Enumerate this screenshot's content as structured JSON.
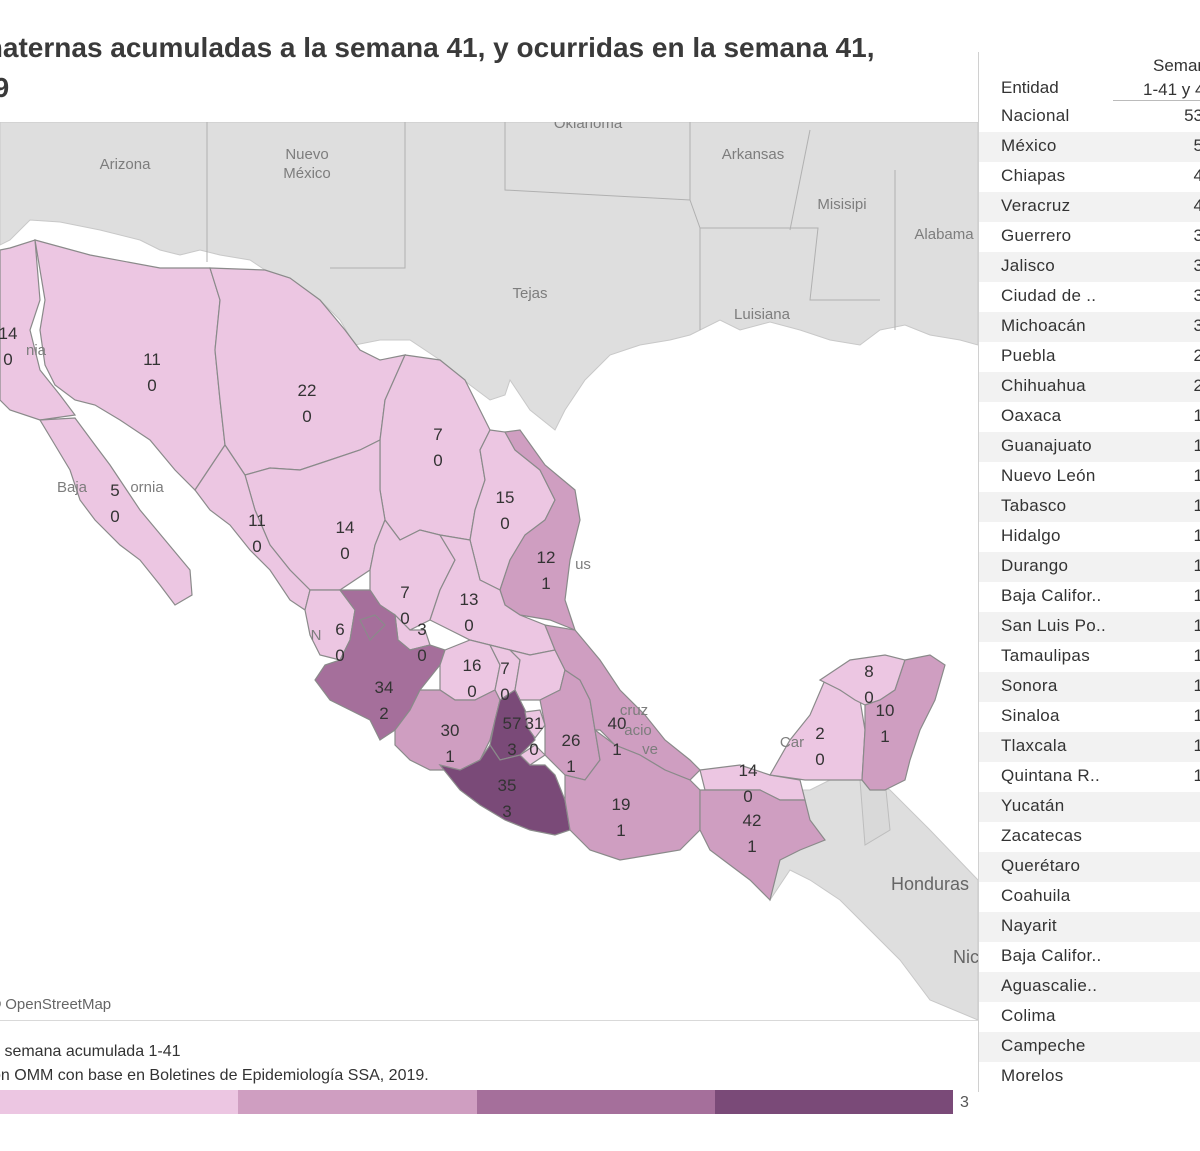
{
  "title": {
    "line1": "maternas acumuladas a la semana 41, y ocurridas en la semana 41,",
    "line2": "19"
  },
  "colors": {
    "bin1": "#ecc6e2",
    "bin2": "#cf9ec1",
    "bin3": "#a56f9b",
    "bin4": "#7a4a78",
    "land_bg": "#dedede",
    "water": "#ffffff",
    "border": "#777777"
  },
  "map": {
    "attribution": "OpenStreetMap",
    "geo_labels": {
      "arizona": "Arizona",
      "nuevo_mexico_1": "Nuevo",
      "nuevo_mexico_2": "México",
      "oklahoma": "Oklahoma",
      "arkansas": "Arkansas",
      "misisipi": "Misisipi",
      "alabama": "Alabama",
      "tejas": "Tejas",
      "luisiana": "Luisiana",
      "baja_california_a": "Baja",
      "baja_california_b": "ornia",
      "nia": "nia",
      "honduras": "Honduras",
      "nic": "Nic",
      "veracruz_a": "cruz",
      "veracruz_b": "acio",
      "veracruz_c": "ve",
      "car": "Car",
      "us": "us",
      "n": "N"
    },
    "states": [
      {
        "id": "sonora",
        "total": "11",
        "week": "0",
        "bin": 1
      },
      {
        "id": "chihuahua",
        "total": "22",
        "week": "0",
        "bin": 1
      },
      {
        "id": "coahuila",
        "total": "7",
        "week": "0",
        "bin": 1
      },
      {
        "id": "nuevo-leon",
        "total": "15",
        "week": "0",
        "bin": 1
      },
      {
        "id": "tamaulipas",
        "total": "12",
        "week": "1",
        "bin": 2
      },
      {
        "id": "baja-california",
        "total": "14",
        "week": "0",
        "bin": 1
      },
      {
        "id": "baja-california-sur",
        "total": "5",
        "week": "0",
        "bin": 1
      },
      {
        "id": "sinaloa",
        "total": "11",
        "week": "0",
        "bin": 1
      },
      {
        "id": "durango",
        "total": "14",
        "week": "0",
        "bin": 1
      },
      {
        "id": "zacatecas",
        "total": "7",
        "week": "0",
        "bin": 1
      },
      {
        "id": "san-luis-potosi",
        "total": "13",
        "week": "0",
        "bin": 1
      },
      {
        "id": "nayarit",
        "total": "6",
        "week": "0",
        "bin": 1
      },
      {
        "id": "aguascalientes",
        "total": "3",
        "week": "0",
        "bin": 1
      },
      {
        "id": "jalisco",
        "total": "34",
        "week": "2",
        "bin": 3
      },
      {
        "id": "guanajuato",
        "total": "16",
        "week": "0",
        "bin": 1
      },
      {
        "id": "queretaro",
        "total": "7",
        "week": "0",
        "bin": 1
      },
      {
        "id": "michoacan",
        "total": "30",
        "week": "1",
        "bin": 2
      },
      {
        "id": "mexico",
        "total": "57",
        "week": "3",
        "bin": 4
      },
      {
        "id": "ciudad-de-mexico",
        "total": "31",
        "week": "0",
        "bin": 1
      },
      {
        "id": "guerrero",
        "total": "35",
        "week": "3",
        "bin": 4
      },
      {
        "id": "puebla",
        "total": "26",
        "week": "1",
        "bin": 2
      },
      {
        "id": "veracruz",
        "total": "40",
        "week": "1",
        "bin": 2
      },
      {
        "id": "oaxaca",
        "total": "19",
        "week": "1",
        "bin": 2
      },
      {
        "id": "tabasco",
        "total": "14",
        "week": "0",
        "bin": 1
      },
      {
        "id": "chiapas",
        "total": "42",
        "week": "1",
        "bin": 2
      },
      {
        "id": "campeche",
        "total": "2",
        "week": "0",
        "bin": 1
      },
      {
        "id": "yucatan",
        "total": "8",
        "week": "0",
        "bin": 1
      },
      {
        "id": "quintana-roo",
        "total": "10",
        "week": "1",
        "bin": 2
      }
    ]
  },
  "legend": {
    "note1": "s semana acumulada 1-41",
    "note2": "ón OMM con base en Boletines de Epidemiología SSA, 2019.",
    "max_label": "3"
  },
  "table": {
    "col_entity": "Entidad",
    "col_semana_1": "Seman",
    "col_semana_2": "1-41 y 4",
    "rows": [
      {
        "name": "Nacional",
        "value": "53"
      },
      {
        "name": "México",
        "value": "5"
      },
      {
        "name": "Chiapas",
        "value": "4"
      },
      {
        "name": "Veracruz",
        "value": "4"
      },
      {
        "name": "Guerrero",
        "value": "3"
      },
      {
        "name": "Jalisco",
        "value": "3"
      },
      {
        "name": "Ciudad de ..",
        "value": "3"
      },
      {
        "name": "Michoacán",
        "value": "3"
      },
      {
        "name": "Puebla",
        "value": "2"
      },
      {
        "name": "Chihuahua",
        "value": "2"
      },
      {
        "name": "Oaxaca",
        "value": "1"
      },
      {
        "name": "Guanajuato",
        "value": "1"
      },
      {
        "name": "Nuevo León",
        "value": "1"
      },
      {
        "name": "Tabasco",
        "value": "1"
      },
      {
        "name": "Hidalgo",
        "value": "1"
      },
      {
        "name": "Durango",
        "value": "1"
      },
      {
        "name": "Baja Califor..",
        "value": "1"
      },
      {
        "name": "San Luis Po..",
        "value": "1"
      },
      {
        "name": "Tamaulipas",
        "value": "1"
      },
      {
        "name": "Sonora",
        "value": "1"
      },
      {
        "name": "Sinaloa",
        "value": "1"
      },
      {
        "name": "Tlaxcala",
        "value": "1"
      },
      {
        "name": "Quintana R..",
        "value": "1"
      },
      {
        "name": "Yucatán",
        "value": ""
      },
      {
        "name": "Zacatecas",
        "value": ""
      },
      {
        "name": "Querétaro",
        "value": ""
      },
      {
        "name": "Coahuila",
        "value": ""
      },
      {
        "name": "Nayarit",
        "value": ""
      },
      {
        "name": "Baja Califor..",
        "value": ""
      },
      {
        "name": "Aguascalie..",
        "value": ""
      },
      {
        "name": "Colima",
        "value": ""
      },
      {
        "name": "Campeche",
        "value": ""
      },
      {
        "name": "Morelos",
        "value": ""
      }
    ]
  }
}
